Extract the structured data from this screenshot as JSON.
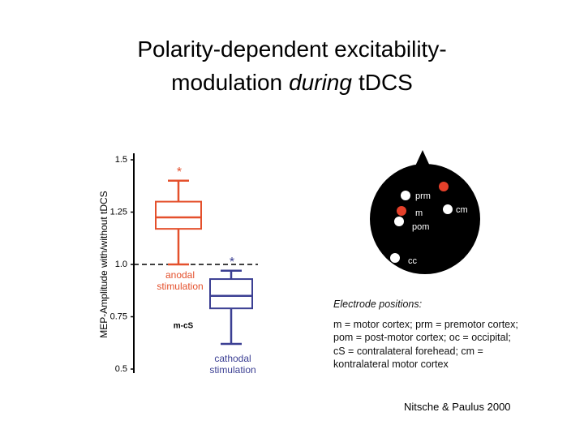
{
  "title": {
    "line1": "Polarity-dependent excitability-",
    "line2": [
      "modulation",
      "during",
      "tDCS"
    ]
  },
  "chart_data": {
    "type": "box",
    "ylabel": "MEP-Amplitude with/without tDCS",
    "ylim": [
      0.5,
      1.5
    ],
    "yticks": [
      0.5,
      0.75,
      {
        "value": 1,
        "label": "1.0"
      },
      1.25,
      1.5
    ],
    "reference_line": 1.0,
    "series": [
      {
        "name": "anodal stimulation",
        "color": "#e4502c",
        "annotation": "*",
        "whisker_low": 1.0,
        "q1": 1.17,
        "median": 1.225,
        "q3": 1.3,
        "whisker_high": 1.4
      },
      {
        "name": "cathodal stimulation",
        "color": "#3b3f93",
        "annotation": "*",
        "whisker_low": 0.62,
        "q1": 0.79,
        "median": 0.85,
        "q3": 0.93,
        "whisker_high": 0.97
      }
    ],
    "note": "m-cS"
  },
  "diagram": {
    "electrodes": [
      {
        "label": "prm",
        "color": "#ffffff"
      },
      {
        "label": "m",
        "color": "#e4402a"
      },
      {
        "label": "cm",
        "color": "#ffffff"
      },
      {
        "label": "pom",
        "color": "#ffffff"
      },
      {
        "label": "cc",
        "color": "#ffffff"
      },
      {
        "label": null,
        "color": "#e4402a"
      }
    ]
  },
  "caption": {
    "heading": "Electrode positions:",
    "body": "m = motor cortex; prm = premotor cortex; pom = post-motor cortex; oc = occipital; cS = contralateral forehead; cm = kontralateral motor cortex"
  },
  "citation": "Nitsche & Paulus 2000"
}
